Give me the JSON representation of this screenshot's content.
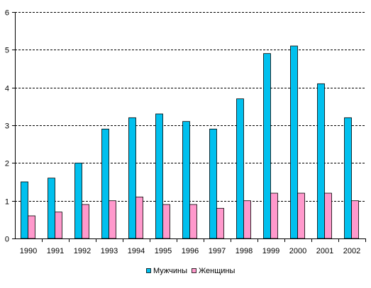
{
  "chart_data": {
    "type": "bar",
    "categories": [
      "1990",
      "1991",
      "1992",
      "1993",
      "1994",
      "1995",
      "1996",
      "1997",
      "1998",
      "1999",
      "2000",
      "2001",
      "2002"
    ],
    "series": [
      {
        "name": "Мужчины",
        "color": "#00c0ee",
        "values": [
          1.5,
          1.6,
          2.0,
          2.9,
          3.2,
          3.3,
          3.1,
          2.9,
          3.7,
          4.9,
          5.1,
          4.1,
          3.2
        ]
      },
      {
        "name": "Женщины",
        "color": "#ff99cc",
        "values": [
          0.6,
          0.7,
          0.9,
          1.0,
          1.1,
          0.9,
          0.9,
          0.8,
          1.0,
          1.2,
          1.2,
          1.2,
          1.0
        ]
      }
    ],
    "ylim": [
      0,
      6
    ],
    "yticks": [
      "0",
      "1",
      "2",
      "3",
      "4",
      "5",
      "6"
    ],
    "grid": "dashed horizontal",
    "legend_position": "bottom",
    "title": "",
    "xlabel": "",
    "ylabel": ""
  }
}
